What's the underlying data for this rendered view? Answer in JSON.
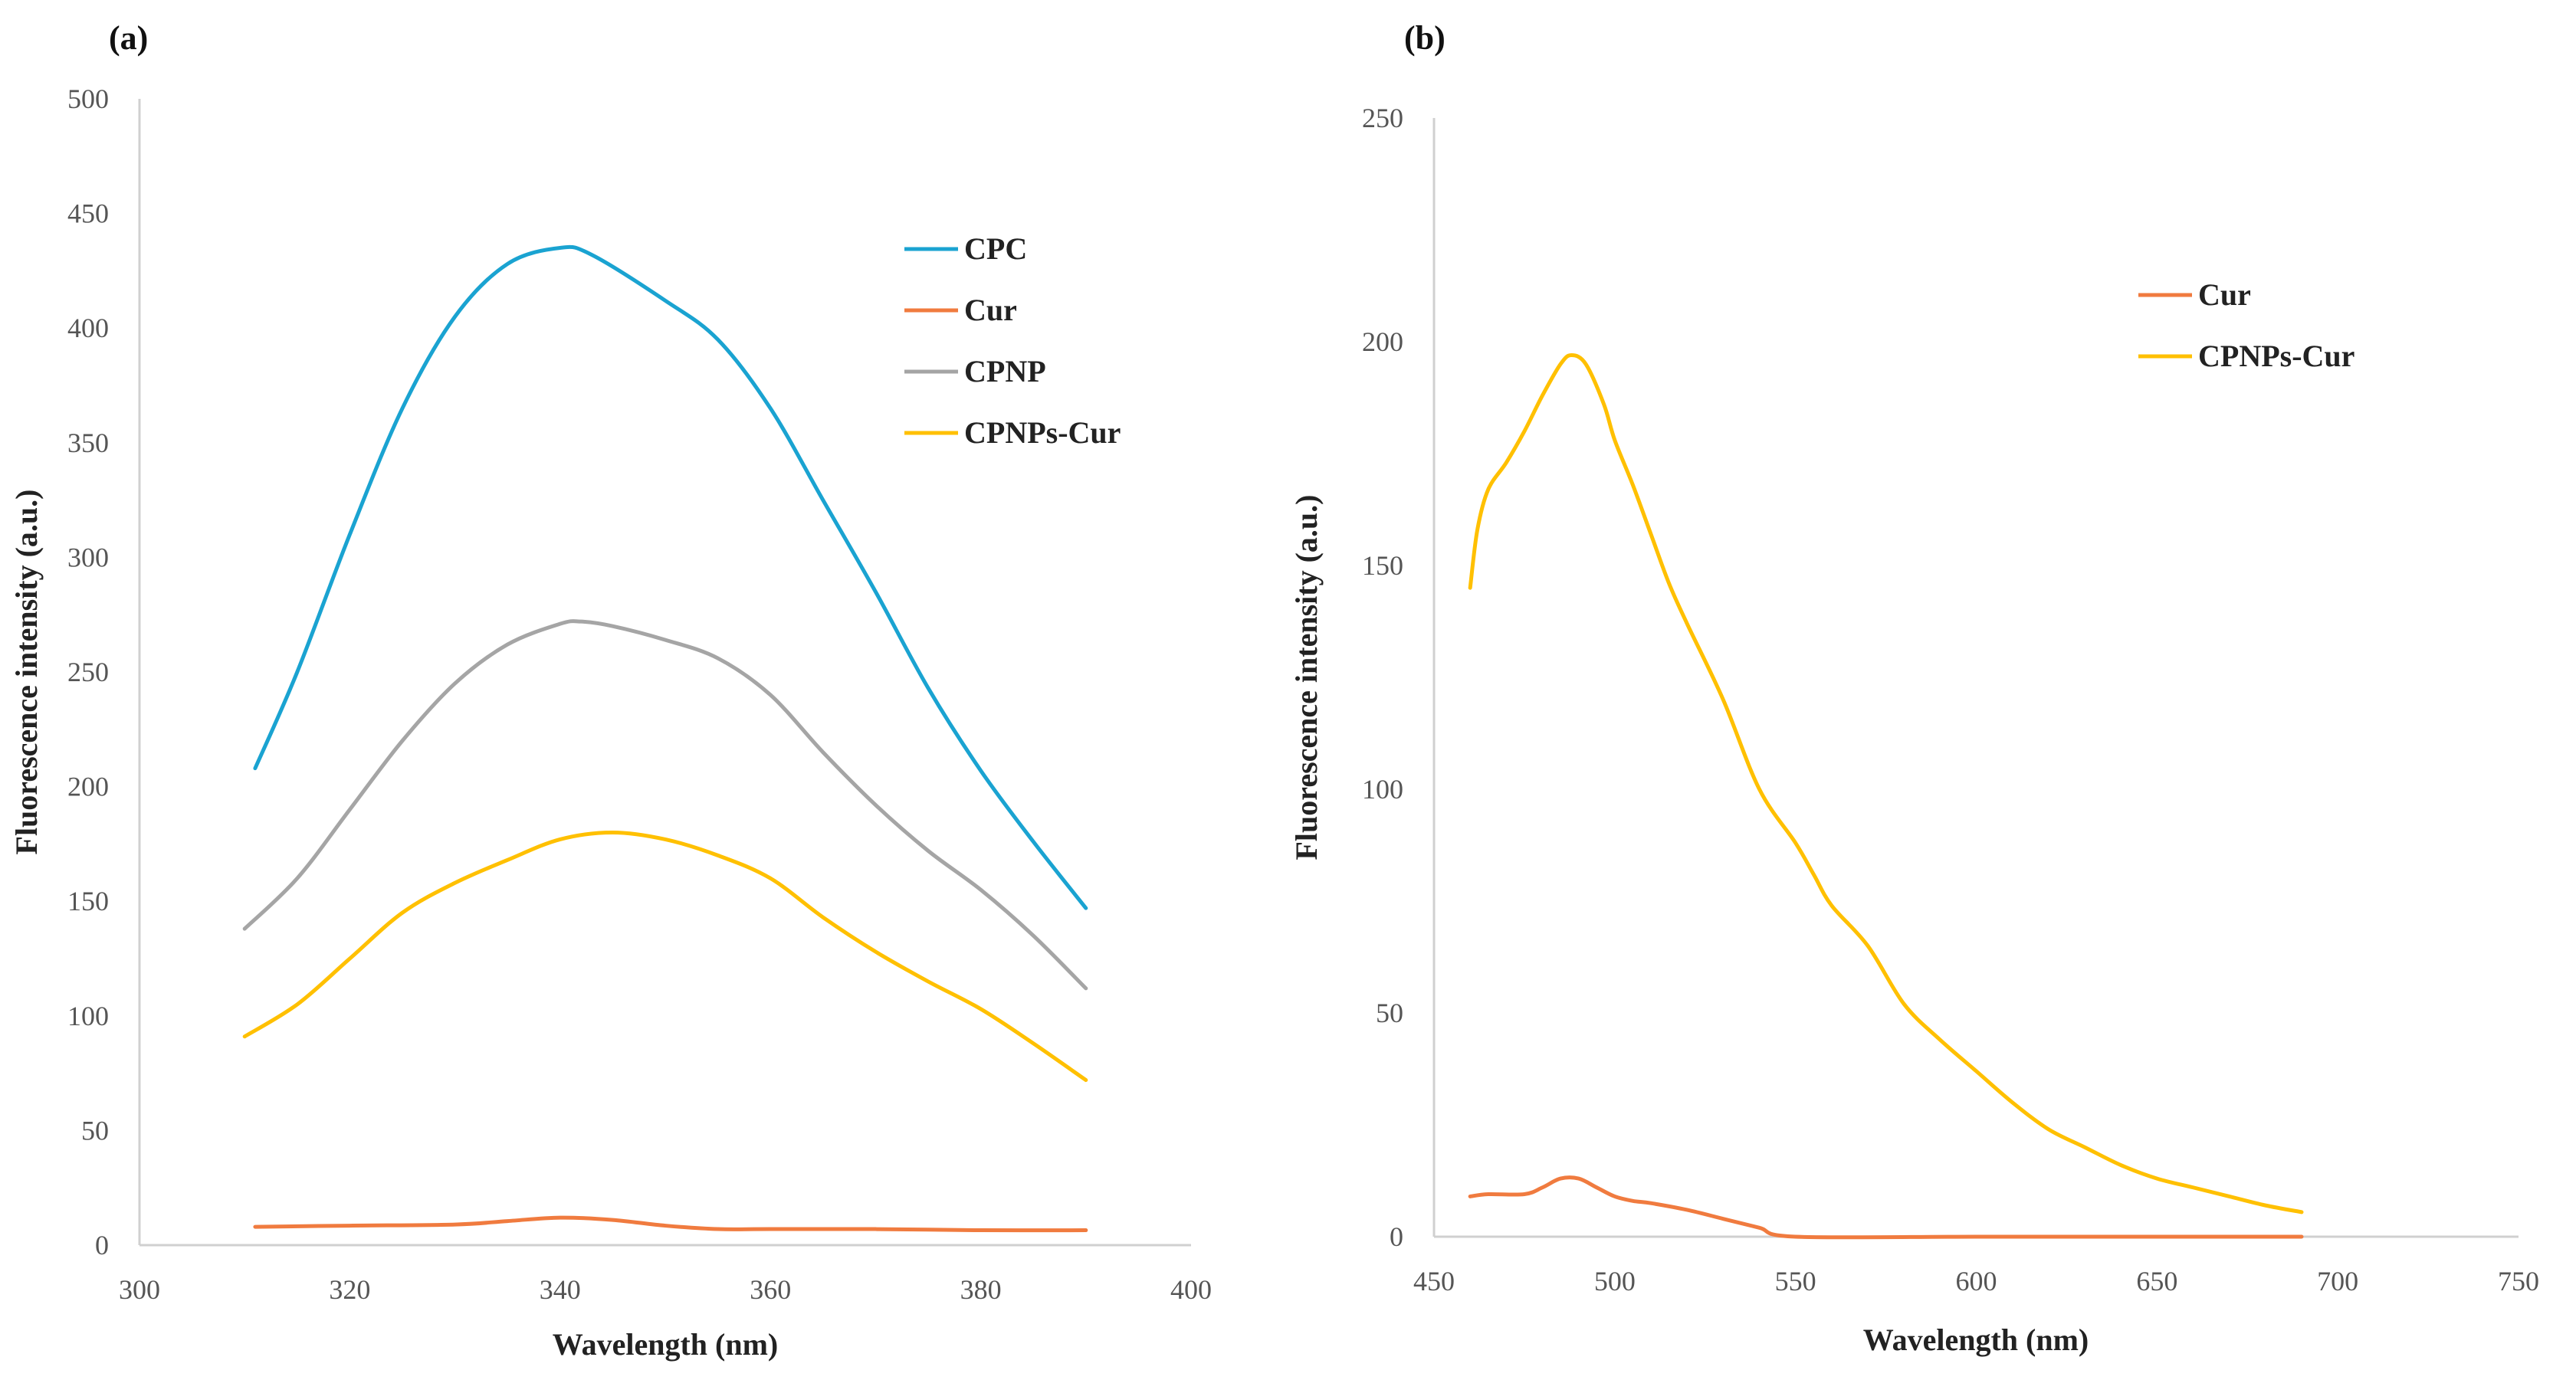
{
  "chart_data": [
    {
      "type": "line",
      "panel_label": "(a)",
      "xlabel": "Wavelength (nm)",
      "ylabel": "Fluorescence intensity (a.u.)",
      "xlim": [
        300,
        400
      ],
      "ylim": [
        0,
        500
      ],
      "xticks": [
        300,
        320,
        340,
        360,
        380,
        400
      ],
      "yticks": [
        0,
        50,
        100,
        150,
        200,
        250,
        300,
        350,
        400,
        450,
        500
      ],
      "grid": false,
      "legend_position": "top-right",
      "series": [
        {
          "name": "CPC",
          "color": "#1aa3d1",
          "x": [
            311,
            315,
            320,
            325,
            330,
            335,
            340,
            343,
            350,
            355,
            360,
            365,
            370,
            375,
            380,
            385,
            390
          ],
          "y": [
            208,
            250,
            310,
            365,
            405,
            428,
            435,
            432,
            412,
            395,
            365,
            325,
            285,
            243,
            207,
            176,
            147
          ]
        },
        {
          "name": "Cur",
          "color": "#f07b3f",
          "x": [
            311,
            320,
            330,
            335,
            340,
            345,
            350,
            355,
            360,
            370,
            380,
            390
          ],
          "y": [
            8,
            8.5,
            9,
            10.5,
            12,
            11,
            8.5,
            7,
            7,
            7,
            6.5,
            6.5
          ]
        },
        {
          "name": "CPNP",
          "color": "#a5a5a5",
          "x": [
            310,
            315,
            320,
            325,
            330,
            335,
            340,
            342,
            345,
            350,
            355,
            360,
            365,
            370,
            375,
            380,
            385,
            390
          ],
          "y": [
            138,
            160,
            190,
            220,
            245,
            262,
            271,
            272,
            270,
            264,
            256,
            240,
            215,
            192,
            172,
            155,
            135,
            112
          ]
        },
        {
          "name": "CPNPs-Cur",
          "color": "#ffc000",
          "x": [
            310,
            315,
            320,
            325,
            330,
            335,
            340,
            345,
            350,
            355,
            360,
            365,
            370,
            375,
            380,
            385,
            390
          ],
          "y": [
            91,
            105,
            125,
            145,
            158,
            168,
            177,
            180,
            177,
            170,
            160,
            143,
            128,
            115,
            103,
            88,
            72
          ]
        }
      ]
    },
    {
      "type": "line",
      "panel_label": "(b)",
      "xlabel": "Wavelength (nm)",
      "ylabel": "Fluorescence intensity (a.u.)",
      "xlim": [
        450,
        750
      ],
      "ylim": [
        0,
        250
      ],
      "xticks": [
        450,
        500,
        550,
        600,
        650,
        700,
        750
      ],
      "yticks": [
        0,
        50,
        100,
        150,
        200,
        250
      ],
      "grid": false,
      "legend_position": "top-right",
      "series": [
        {
          "name": "Cur",
          "color": "#f07b3f",
          "x": [
            460,
            465,
            475,
            480,
            485,
            490,
            495,
            500,
            505,
            510,
            520,
            530,
            540,
            550,
            600,
            650,
            690
          ],
          "y": [
            9,
            9.5,
            9.5,
            11,
            13,
            13,
            11,
            9,
            8,
            7.5,
            6,
            4,
            2,
            0,
            0,
            0,
            0
          ]
        },
        {
          "name": "CPNPs-Cur",
          "color": "#ffc000",
          "x": [
            460,
            462,
            465,
            470,
            475,
            480,
            485,
            488,
            492,
            497,
            500,
            505,
            510,
            515,
            520,
            530,
            540,
            550,
            555,
            560,
            570,
            580,
            590,
            600,
            610,
            620,
            630,
            640,
            650,
            660,
            670,
            680,
            690
          ],
          "y": [
            145,
            158,
            167,
            173,
            180,
            188,
            195,
            197,
            195,
            186,
            178,
            168,
            157,
            146,
            137,
            120,
            100,
            88,
            81,
            74,
            65,
            52,
            44,
            37,
            30,
            24,
            20,
            16,
            13,
            11,
            9,
            7,
            5.5
          ]
        }
      ]
    }
  ]
}
